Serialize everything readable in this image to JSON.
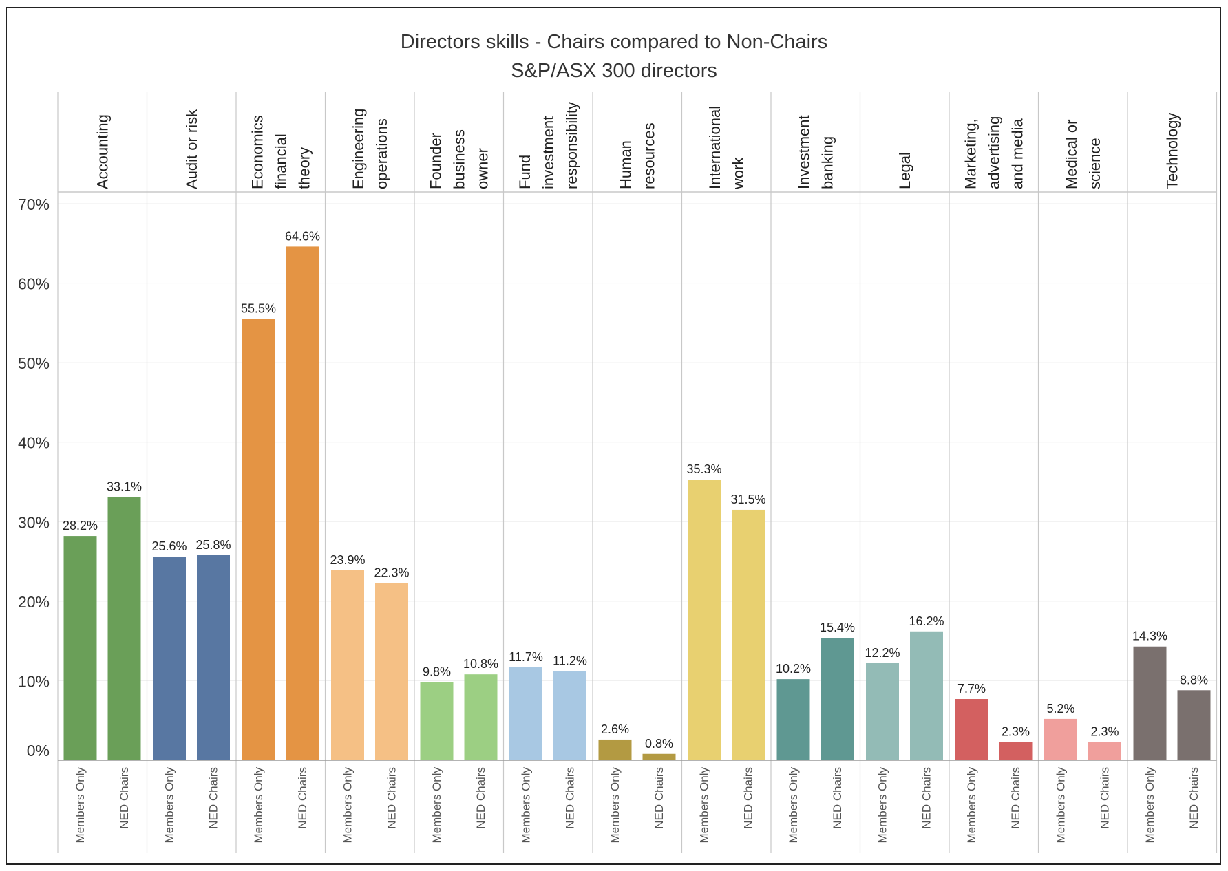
{
  "chart_data": {
    "type": "bar",
    "title": "Directors skills - Chairs compared to Non-Chairs",
    "subtitle": "S&P/ASX 300 directors",
    "xlabel": "",
    "ylabel": "",
    "ylim": [
      0,
      70
    ],
    "y_ticks": [
      "0%",
      "10%",
      "20%",
      "30%",
      "40%",
      "50%",
      "60%",
      "70%"
    ],
    "grid": true,
    "legend": "none",
    "series_labels": [
      "Members Only",
      "NED Chairs"
    ],
    "categories": [
      {
        "label": [
          "Accounting"
        ],
        "color": "#6a9f58",
        "values": [
          28.2,
          33.1
        ],
        "value_labels": [
          "28.2%",
          "33.1%"
        ]
      },
      {
        "label": [
          "Audit or risk"
        ],
        "color": "#5877a2",
        "values": [
          25.6,
          25.8
        ],
        "value_labels": [
          "25.6%",
          "25.8%"
        ]
      },
      {
        "label": [
          "Economics",
          "financial",
          "theory"
        ],
        "color": "#e49444",
        "values": [
          55.5,
          64.6
        ],
        "value_labels": [
          "55.5%",
          "64.6%"
        ]
      },
      {
        "label": [
          "Engineering",
          "operations"
        ],
        "color": "#f5c085",
        "values": [
          23.9,
          22.3
        ],
        "value_labels": [
          "23.9%",
          "22.3%"
        ]
      },
      {
        "label": [
          "Founder",
          "business",
          "owner"
        ],
        "color": "#9ccf83",
        "values": [
          9.8,
          10.8
        ],
        "value_labels": [
          "9.8%",
          "10.8%"
        ]
      },
      {
        "label": [
          "Fund",
          "investment",
          "responsibility"
        ],
        "color": "#a8c8e3",
        "values": [
          11.7,
          11.2
        ],
        "value_labels": [
          "11.7%",
          "11.2%"
        ]
      },
      {
        "label": [
          "Human",
          "resources"
        ],
        "color": "#b39a42",
        "values": [
          2.6,
          0.8
        ],
        "value_labels": [
          "2.6%",
          "0.8%"
        ]
      },
      {
        "label": [
          "International",
          "work"
        ],
        "color": "#e8d070",
        "values": [
          35.3,
          31.5
        ],
        "value_labels": [
          "35.3%",
          "31.5%"
        ]
      },
      {
        "label": [
          "Investment",
          "banking"
        ],
        "color": "#5f9892",
        "values": [
          10.2,
          15.4
        ],
        "value_labels": [
          "10.2%",
          "15.4%"
        ]
      },
      {
        "label": [
          "Legal"
        ],
        "color": "#93bbb6",
        "values": [
          12.2,
          16.2
        ],
        "value_labels": [
          "12.2%",
          "16.2%"
        ]
      },
      {
        "label": [
          "Marketing,",
          "advertising",
          "and media"
        ],
        "color": "#d36060",
        "values": [
          7.7,
          2.3
        ],
        "value_labels": [
          "7.7%",
          "2.3%"
        ]
      },
      {
        "label": [
          "Medical or",
          "science"
        ],
        "color": "#f09f9c",
        "values": [
          5.2,
          2.3
        ],
        "value_labels": [
          "5.2%",
          "2.3%"
        ]
      },
      {
        "label": [
          "Technology"
        ],
        "color": "#7a706e",
        "values": [
          14.3,
          8.8
        ],
        "value_labels": [
          "14.3%",
          "8.8%"
        ]
      }
    ]
  }
}
